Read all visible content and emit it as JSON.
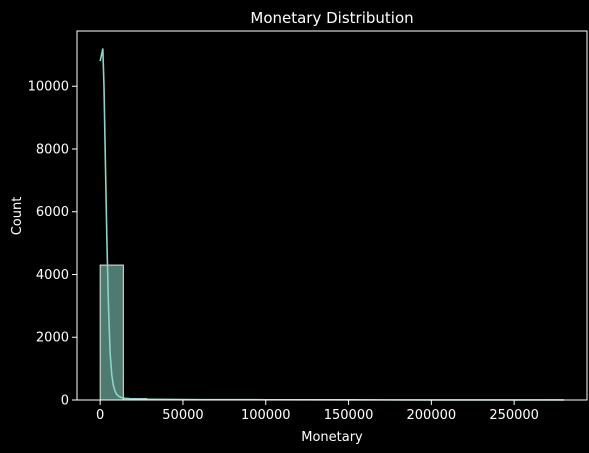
{
  "chart_data": {
    "type": "bar",
    "title": "Monetary Distribution",
    "xlabel": "Monetary",
    "ylabel": "Count",
    "xlim": [
      -14000,
      294000
    ],
    "ylim": [
      0,
      11760
    ],
    "x_ticks": [
      0,
      50000,
      100000,
      150000,
      200000,
      250000
    ],
    "x_tick_labels": [
      "0",
      "50000",
      "100000",
      "150000",
      "200000",
      "250000"
    ],
    "y_ticks": [
      0,
      2000,
      4000,
      6000,
      8000,
      10000
    ],
    "y_tick_labels": [
      "0",
      "2000",
      "4000",
      "6000",
      "8000",
      "10000"
    ],
    "bins": [
      {
        "x0": 0,
        "x1": 14000,
        "count": 4300
      },
      {
        "x0": 14000,
        "x1": 28000,
        "count": 45
      },
      {
        "x0": 28000,
        "x1": 42000,
        "count": 12
      },
      {
        "x0": 42000,
        "x1": 56000,
        "count": 5
      },
      {
        "x0": 56000,
        "x1": 70000,
        "count": 3
      },
      {
        "x0": 70000,
        "x1": 84000,
        "count": 2
      },
      {
        "x0": 84000,
        "x1": 98000,
        "count": 1
      },
      {
        "x0": 98000,
        "x1": 112000,
        "count": 1
      },
      {
        "x0": 112000,
        "x1": 126000,
        "count": 1
      },
      {
        "x0": 126000,
        "x1": 140000,
        "count": 0
      },
      {
        "x0": 140000,
        "x1": 154000,
        "count": 0
      },
      {
        "x0": 154000,
        "x1": 168000,
        "count": 0
      },
      {
        "x0": 168000,
        "x1": 182000,
        "count": 0
      },
      {
        "x0": 182000,
        "x1": 196000,
        "count": 0
      },
      {
        "x0": 196000,
        "x1": 210000,
        "count": 0
      },
      {
        "x0": 210000,
        "x1": 224000,
        "count": 0
      },
      {
        "x0": 224000,
        "x1": 238000,
        "count": 0
      },
      {
        "x0": 238000,
        "x1": 252000,
        "count": 0
      },
      {
        "x0": 252000,
        "x1": 266000,
        "count": 0
      },
      {
        "x0": 266000,
        "x1": 280000,
        "count": 1
      }
    ],
    "kde": {
      "x": [
        0,
        800,
        1600,
        2300,
        3000,
        4000,
        5000,
        6000,
        7000,
        8000,
        9000,
        10000,
        11500,
        13000,
        15000,
        18000,
        22000,
        28000,
        40000,
        60000,
        100000,
        150000,
        200000,
        250000,
        280000
      ],
      "y": [
        10800,
        11000,
        11200,
        10000,
        8000,
        5200,
        3000,
        1500,
        800,
        450,
        280,
        180,
        110,
        75,
        55,
        42,
        32,
        24,
        18,
        12,
        8,
        5,
        3,
        2,
        1
      ]
    },
    "colors": {
      "bar_fill": "#4f7a6f",
      "bar_edge": "#e6e6e6",
      "kde_line": "#8dd3c7",
      "background": "#000000",
      "axes": "#ffffff"
    },
    "grid": false,
    "legend": "none"
  }
}
